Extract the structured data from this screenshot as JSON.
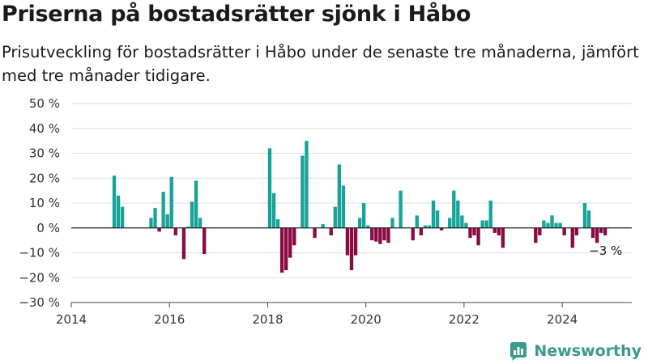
{
  "header": {
    "title": "Priserna på bostadsrätter sjönk i Håbo",
    "subtitle": "Prisutveckling för bostadsrätter i Håbo under de senaste tre månaderna, jämfört med tre månader tidigare."
  },
  "branding": {
    "name": "Newsworthy",
    "color": "#3a9a8e"
  },
  "chart_data": {
    "type": "bar",
    "title": "Priserna på bostadsrätter sjönk i Håbo",
    "subtitle": "Prisutveckling för bostadsrätter i Håbo under de senaste tre månaderna, jämfört med tre månader tidigare.",
    "xlabel": "",
    "ylabel": "",
    "ylim": [
      -30,
      50
    ],
    "xlim": [
      "2014-01",
      "2025-06"
    ],
    "yticks": [
      50,
      40,
      30,
      20,
      10,
      0,
      -10,
      -20,
      -30
    ],
    "ytick_labels": [
      "50 %",
      "40 %",
      "30 %",
      "20 %",
      "10 %",
      "0 %",
      "−10 %",
      "−20 %",
      "−30 %"
    ],
    "xticks": [
      "2014",
      "2016",
      "2018",
      "2020",
      "2022",
      "2024"
    ],
    "grid": true,
    "colors": {
      "positive": "#17a398",
      "negative": "#8b0a44"
    },
    "end_label": "−3 %",
    "x": [
      "2014-11",
      "2014-12",
      "2015-01",
      "2015-02",
      "2015-03",
      "2015-04",
      "2015-05",
      "2015-06",
      "2015-07",
      "2015-08",
      "2015-09",
      "2015-10",
      "2015-11",
      "2015-12",
      "2016-01",
      "2016-02",
      "2016-03",
      "2016-04",
      "2016-05",
      "2016-06",
      "2016-07",
      "2016-08",
      "2016-09",
      "2016-10",
      "2018-01",
      "2018-02",
      "2018-03",
      "2018-04",
      "2018-05",
      "2018-06",
      "2018-07",
      "2018-08",
      "2018-09",
      "2018-10",
      "2018-11",
      "2018-12",
      "2019-01",
      "2019-02",
      "2019-03",
      "2019-04",
      "2019-05",
      "2019-06",
      "2019-07",
      "2019-08",
      "2019-09",
      "2019-10",
      "2019-11",
      "2019-12",
      "2020-01",
      "2020-02",
      "2020-03",
      "2020-04",
      "2020-05",
      "2020-06",
      "2020-07",
      "2020-08",
      "2020-09",
      "2020-10",
      "2020-11",
      "2020-12",
      "2021-01",
      "2021-02",
      "2021-03",
      "2021-04",
      "2021-05",
      "2021-06",
      "2021-07",
      "2021-08",
      "2021-09",
      "2021-10",
      "2021-11",
      "2021-12",
      "2022-01",
      "2022-02",
      "2022-03",
      "2022-04",
      "2022-05",
      "2022-06",
      "2022-07",
      "2022-08",
      "2022-09",
      "2022-10",
      "2023-06",
      "2023-07",
      "2023-08",
      "2023-09",
      "2023-10",
      "2023-11",
      "2023-12",
      "2024-01",
      "2024-02",
      "2024-03",
      "2024-04",
      "2024-05",
      "2024-06",
      "2024-07",
      "2024-08",
      "2024-09",
      "2024-10",
      "2024-11"
    ],
    "values": [
      21,
      13,
      8.5,
      0,
      0,
      0,
      0,
      0,
      0,
      4,
      8,
      -1.5,
      14.5,
      5.5,
      20.5,
      -3,
      0,
      -12.5,
      0.5,
      10.5,
      19,
      4,
      -10.5,
      0,
      32,
      14,
      3.5,
      -18,
      -17,
      -12,
      -7,
      0,
      29,
      35,
      0,
      -4,
      0,
      1.5,
      0,
      -3,
      8.5,
      25.5,
      17,
      -11,
      -17,
      -11,
      4,
      10,
      1,
      -5,
      -5.5,
      -6.5,
      -5,
      -6,
      4,
      0,
      15,
      0,
      0,
      -5,
      5,
      -3,
      1,
      1,
      11,
      7,
      -1,
      0,
      4,
      15,
      11,
      5,
      2,
      -4,
      -3,
      -7,
      3,
      3,
      11,
      -2,
      -3,
      -8,
      -6,
      -3,
      3,
      2,
      5,
      2,
      2,
      -3,
      0,
      -8,
      -3,
      0,
      10,
      7,
      -4,
      -6,
      -2,
      -3
    ]
  }
}
